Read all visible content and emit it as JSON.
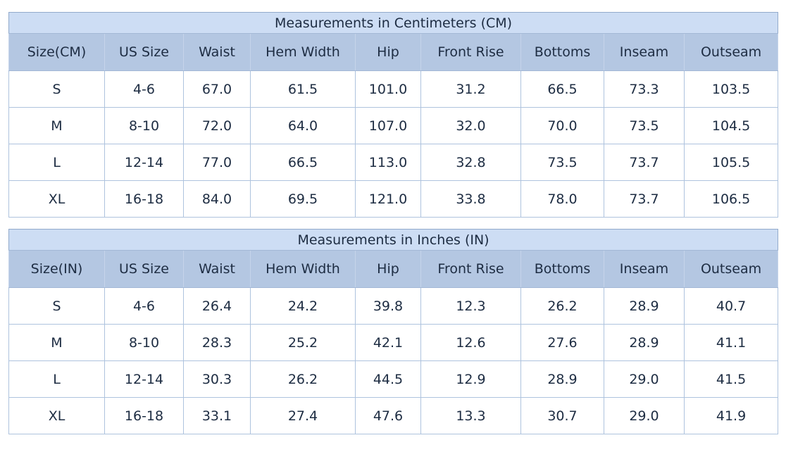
{
  "page": {
    "background_color": "#ffffff",
    "text_color": "#1d2c42"
  },
  "colors": {
    "title_row_bg": "#cdddf4",
    "header_row_bg": "#b4c7e2",
    "data_row_bg": "#ffffff",
    "cell_border": "#aec3de",
    "outer_border": "#92aacb"
  },
  "tables": [
    {
      "id": "cm",
      "title": "Measurements in Centimeters (CM)",
      "headers": [
        "Size(CM)",
        "US Size",
        "Waist",
        "Hem Width",
        "Hip",
        "Front Rise",
        "Bottoms",
        "Inseam",
        "Outseam"
      ],
      "rows": [
        [
          "S",
          "4-6",
          "67.0",
          "61.5",
          "101.0",
          "31.2",
          "66.5",
          "73.3",
          "103.5"
        ],
        [
          "M",
          "8-10",
          "72.0",
          "64.0",
          "107.0",
          "32.0",
          "70.0",
          "73.5",
          "104.5"
        ],
        [
          "L",
          "12-14",
          "77.0",
          "66.5",
          "113.0",
          "32.8",
          "73.5",
          "73.7",
          "105.5"
        ],
        [
          "XL",
          "16-18",
          "84.0",
          "69.5",
          "121.0",
          "33.8",
          "78.0",
          "73.7",
          "106.5"
        ]
      ]
    },
    {
      "id": "in",
      "title": "Measurements in Inches (IN)",
      "headers": [
        "Size(IN)",
        "US Size",
        "Waist",
        "Hem Width",
        "Hip",
        "Front Rise",
        "Bottoms",
        "Inseam",
        "Outseam"
      ],
      "rows": [
        [
          "S",
          "4-6",
          "26.4",
          "24.2",
          "39.8",
          "12.3",
          "26.2",
          "28.9",
          "40.7"
        ],
        [
          "M",
          "8-10",
          "28.3",
          "25.2",
          "42.1",
          "12.6",
          "27.6",
          "28.9",
          "41.1"
        ],
        [
          "L",
          "12-14",
          "30.3",
          "26.2",
          "44.5",
          "12.9",
          "28.9",
          "29.0",
          "41.5"
        ],
        [
          "XL",
          "16-18",
          "33.1",
          "27.4",
          "47.6",
          "13.3",
          "30.7",
          "29.0",
          "41.9"
        ]
      ]
    }
  ]
}
